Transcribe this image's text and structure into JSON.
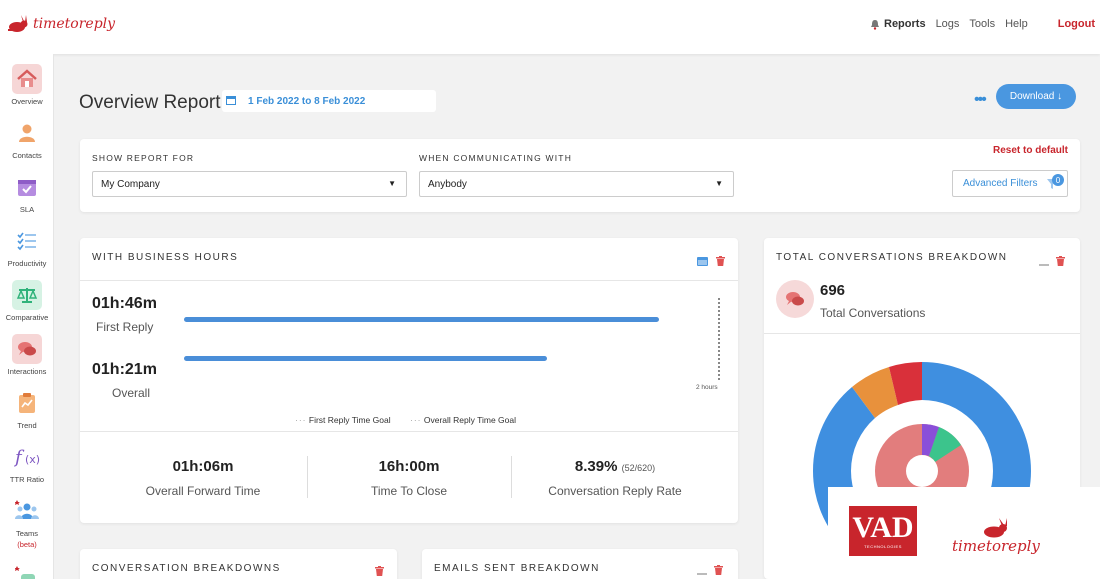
{
  "brand": {
    "logo_text": "timetoreply",
    "accent": "#c8252c",
    "primary": "#4a97e0"
  },
  "topnav": {
    "reports": "Reports",
    "logs": "Logs",
    "tools": "Tools",
    "help": "Help",
    "logout": "Logout"
  },
  "sidebar": {
    "items": [
      {
        "label": "Overview",
        "icon": "home-icon"
      },
      {
        "label": "Contacts",
        "icon": "contacts-icon"
      },
      {
        "label": "SLA",
        "icon": "sla-calendar-icon"
      },
      {
        "label": "Productivity",
        "icon": "checklist-icon"
      },
      {
        "label": "Comparative",
        "icon": "scales-icon"
      },
      {
        "label": "Interactions",
        "icon": "chat-bubbles-icon"
      },
      {
        "label": "Trend",
        "icon": "clipboard-icon"
      },
      {
        "label": "TTR Ratio",
        "icon": "fx-icon"
      },
      {
        "label": "Teams",
        "icon": "team-icon",
        "badge": "(beta)"
      }
    ]
  },
  "header": {
    "title": "Overview Report",
    "date_range": "1 Feb 2022 to 8 Feb 2022",
    "download_label": "Download ↓",
    "more": "•••"
  },
  "filters": {
    "show_label": "SHOW REPORT FOR",
    "show_value": "My Company",
    "communicating_label": "WHEN COMMUNICATING WITH",
    "communicating_value": "Anybody",
    "reset_label": "Reset to default",
    "advanced_label": "Advanced Filters",
    "advanced_count": "0"
  },
  "business_hours": {
    "title": "WITH BUSINESS HOURS",
    "first_reply_value": "01h:46m",
    "first_reply_label": "First Reply",
    "overall_value": "01h:21m",
    "overall_label": "Overall",
    "goal_tick": "2 hours",
    "first_reply_fraction": 0.89,
    "overall_fraction": 0.68,
    "legend_first": "First Reply Time Goal",
    "legend_overall": "Overall Reply Time Goal",
    "stats": [
      {
        "value": "01h:06m",
        "label": "Overall Forward Time"
      },
      {
        "value": "16h:00m",
        "label": "Time To Close"
      },
      {
        "value": "8.39%",
        "sub": "(52/620)",
        "label": "Conversation Reply Rate"
      }
    ]
  },
  "total_conversations": {
    "title": "TOTAL CONVERSATIONS BREAKDOWN",
    "count": "696",
    "label": "Total Conversations"
  },
  "bottom_cards": {
    "conversation_title": "CONVERSATION BREAKDOWNS",
    "emails_title": "EMAILS SENT BREAKDOWN"
  },
  "watermark": {
    "vad_text": "VAD",
    "vad_sub": "TECHNOLOGIES",
    "ttr_text": "timetoreply"
  }
}
